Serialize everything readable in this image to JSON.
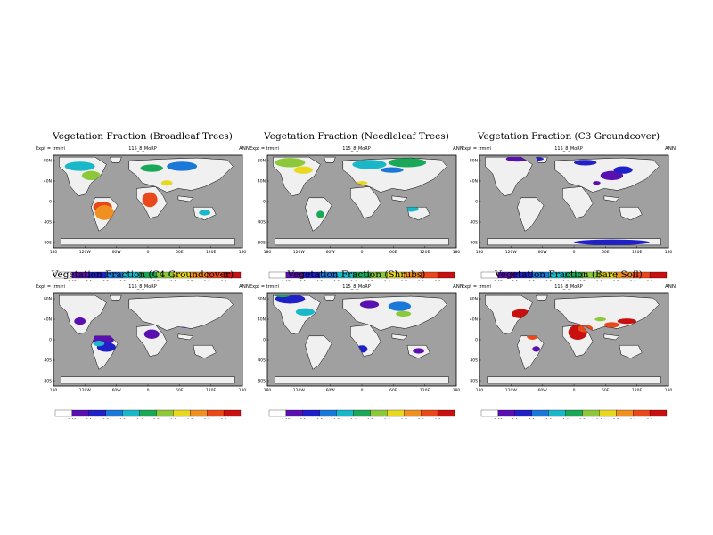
{
  "common": {
    "expt_label": "Expt = trmrri",
    "case_label": "115_8_MoRP",
    "season": "ANN",
    "lat_labels": [
      "80N",
      "40N",
      "0",
      "40S",
      "80S"
    ],
    "lon_labels": [
      "180",
      "120W",
      "60W",
      "0",
      "60E",
      "120E",
      "180"
    ],
    "cbar_ticks": [
      "0.05",
      "0.1",
      "0.2",
      "0.3",
      "0.4",
      "0.5",
      "0.6",
      "0.7",
      "0.8",
      "0.9"
    ],
    "palette": [
      "#ffffff",
      "#5a10b0",
      "#2020c8",
      "#1a78d8",
      "#18b8c8",
      "#1aa858",
      "#8cc83a",
      "#e8d820",
      "#f09020",
      "#e8481a",
      "#c81010"
    ],
    "ocean_color": "#a0a0a0",
    "land_color": "#f0f0f0"
  },
  "panels": [
    {
      "title": "Vegetation Fraction (Broadleaf Trees)"
    },
    {
      "title": "Vegetation Fraction (Needleleaf Trees)"
    },
    {
      "title": "Vegetation Fraction (C3 Groundcover)"
    },
    {
      "title": "Vegetation Fraction (C4 Groundcover)"
    },
    {
      "title": "Vegetation Fraction (Shrubs)"
    },
    {
      "title": "Vegetation Fraction (Bare Soil)"
    }
  ]
}
